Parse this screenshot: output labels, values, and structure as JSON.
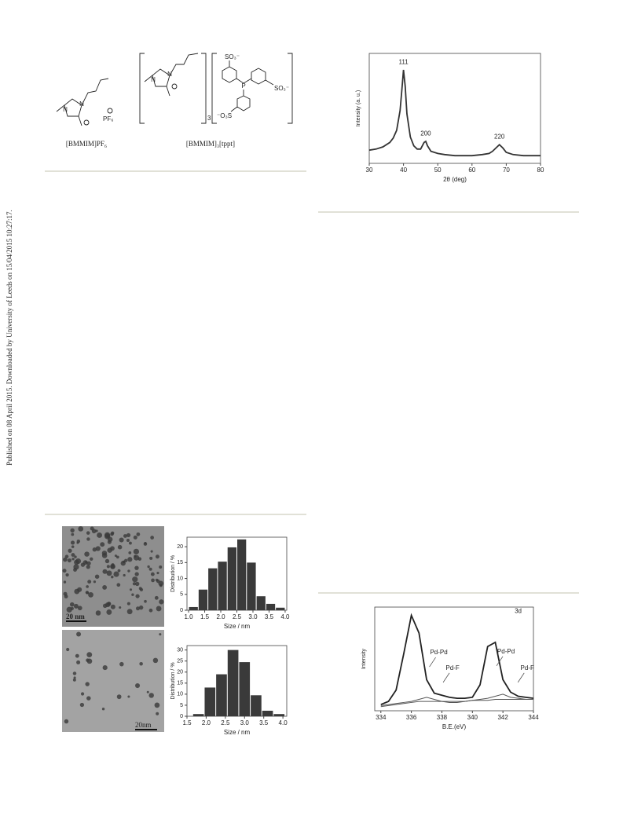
{
  "side_note": "Published on 08 April 2015. Downloaded by University of Leeds on 15/04/2015 10:27:17.",
  "scheme": {
    "left_atoms": [
      "N",
      "N",
      "PF₆"
    ],
    "right_atoms": [
      "N",
      "N",
      "3",
      "SO₃⁻",
      "P",
      "SO₃⁻",
      "⁻O₃S"
    ],
    "labels": [
      "[BMMIM]PF₆",
      "[BMMIM]₃[tppt]"
    ]
  },
  "tem_labels": [
    "20 nm",
    "20nm"
  ],
  "chart_data": [
    {
      "type": "line",
      "x_label": "2θ (deg)",
      "y_label": "Intensity (a. u.)",
      "x": [
        30,
        32,
        34,
        36,
        37,
        38,
        39,
        39.5,
        40,
        40.5,
        41,
        42,
        43,
        44,
        45,
        46,
        46.5,
        47,
        48,
        50,
        52,
        55,
        60,
        63,
        65,
        66,
        67,
        68,
        69,
        70,
        72,
        75,
        80
      ],
      "series": [
        {
          "color": "#333333",
          "values": [
            12,
            13,
            15,
            19,
            23,
            30,
            48,
            66,
            85,
            70,
            45,
            24,
            16,
            13,
            13,
            19,
            20,
            16,
            11,
            9,
            8,
            7,
            7,
            8,
            9,
            11,
            14,
            17,
            14,
            10,
            8,
            7,
            7
          ]
        }
      ],
      "xlim": [
        30,
        80
      ],
      "xticks": [
        30,
        40,
        50,
        60,
        70,
        80
      ],
      "ylim": [
        0,
        100
      ],
      "annotations": [
        {
          "text": "111",
          "x": 40,
          "y": 92
        },
        {
          "text": "200",
          "x": 46.5,
          "y": 27
        },
        {
          "text": "220",
          "x": 68,
          "y": 24
        }
      ]
    },
    {
      "type": "histogram",
      "x_label": "Size / nm",
      "y_label": "Distribution / %",
      "color": "#3a3a3a",
      "bins": [
        1.0,
        1.3,
        1.6,
        1.9,
        2.2,
        2.5,
        2.8,
        3.1,
        3.4,
        3.7,
        4.0
      ],
      "counts": [
        1,
        6.5,
        13.2,
        15.3,
        19.8,
        22.3,
        15,
        4.4,
        2,
        0.8
      ],
      "xlim": [
        0.95,
        4.05
      ],
      "xticks": [
        {
          "value": 1,
          "label": "1.0"
        },
        1.5,
        {
          "value": 2,
          "label": "2.0"
        },
        2.5,
        {
          "value": 3,
          "label": "3.0"
        },
        3.5,
        {
          "value": 4,
          "label": "4.0"
        }
      ],
      "ylim": [
        0,
        23
      ],
      "yticks": [
        0,
        5,
        10,
        15,
        20
      ]
    },
    {
      "type": "histogram",
      "x_label": "Size / nm",
      "y_label": "Distribution / %",
      "color": "#3a3a3a",
      "bins": [
        1.65,
        1.95,
        2.25,
        2.55,
        2.85,
        3.15,
        3.45,
        3.75,
        4.05
      ],
      "counts": [
        1,
        13,
        19,
        30,
        24.5,
        9.5,
        2.5,
        1
      ],
      "xlim": [
        1.5,
        4.1
      ],
      "xticks": [
        1.5,
        {
          "value": 2,
          "label": "2.0"
        },
        2.5,
        {
          "value": 3,
          "label": "3.0"
        },
        3.5,
        {
          "value": 4,
          "label": "4.0"
        }
      ],
      "ylim": [
        0,
        32
      ],
      "yticks": [
        0,
        5,
        10,
        15,
        20,
        25,
        30
      ]
    },
    {
      "type": "line",
      "x_label": "B.E.(eV)",
      "y_label": "Intensity",
      "x": [
        334,
        334.5,
        335,
        335.5,
        336,
        336.5,
        337,
        337.5,
        338,
        338.5,
        339,
        339.5,
        340,
        340.5,
        341,
        341.5,
        342,
        342.5,
        343,
        343.5,
        344
      ],
      "series": [
        {
          "color": "#222222",
          "values": [
            6,
            9,
            20,
            55,
            92,
            75,
            30,
            17,
            15,
            13,
            12,
            12,
            13,
            25,
            62,
            66,
            30,
            18,
            14,
            13,
            12
          ]
        },
        {
          "color": "#555555",
          "values": [
            5,
            6,
            7,
            8,
            9,
            11,
            13,
            11,
            9,
            8,
            8,
            9,
            10,
            11,
            12,
            14,
            16,
            13,
            12,
            11,
            11
          ]
        },
        {
          "color": "#555555",
          "values": [
            4,
            5,
            6,
            7,
            8,
            9,
            9,
            9,
            9,
            9,
            9,
            9,
            10,
            10,
            10,
            11,
            11,
            11,
            11,
            11,
            11
          ]
        }
      ],
      "xlim": [
        333.6,
        344
      ],
      "xticks": [
        334,
        336,
        338,
        340,
        342,
        344
      ],
      "ylim": [
        0,
        100
      ],
      "annotations": [
        {
          "text": "3d",
          "x": 343,
          "y": 96
        },
        {
          "text": "Pd-Pd",
          "x": 337.8,
          "y": 56
        },
        {
          "text": "Pd-F",
          "x": 338.7,
          "y": 41
        },
        {
          "text": "Pd-Pd",
          "x": 342.2,
          "y": 57
        },
        {
          "text": "Pd-F",
          "x": 343.6,
          "y": 41
        }
      ]
    }
  ]
}
